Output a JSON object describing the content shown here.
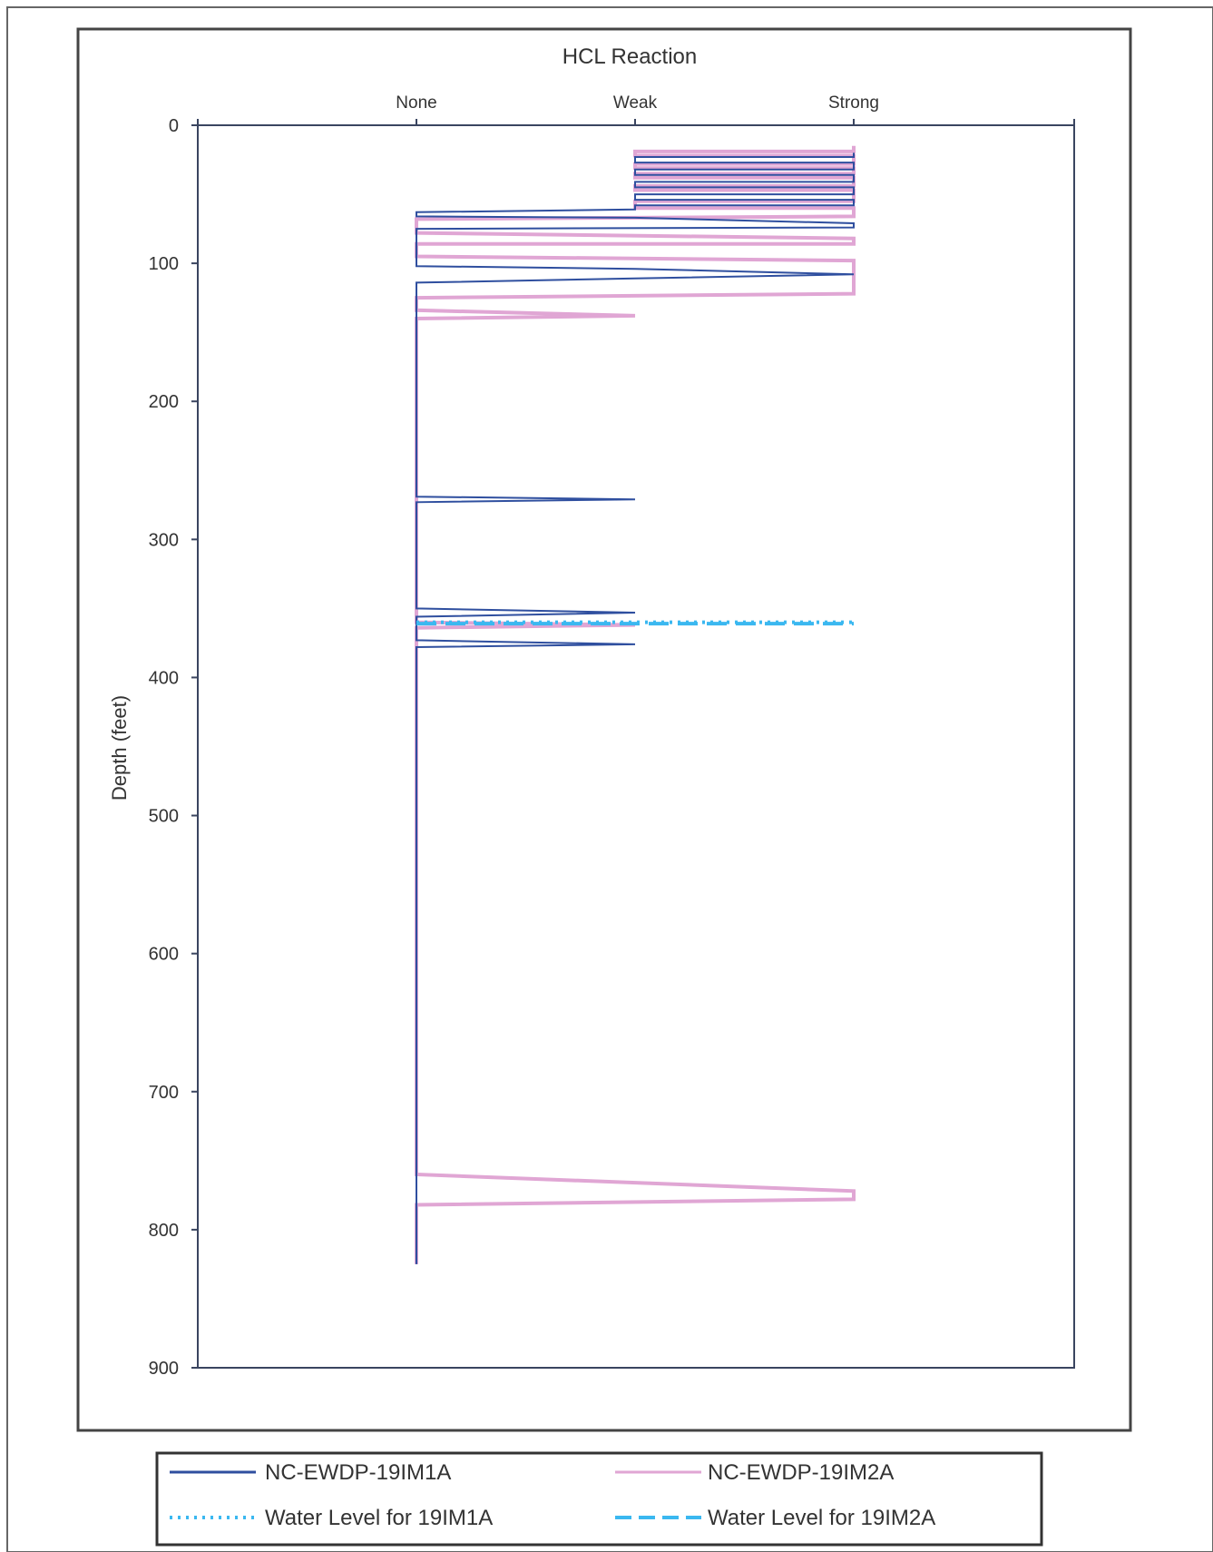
{
  "chart_data": {
    "type": "line",
    "title": "HCL Reaction",
    "xlabel": "",
    "ylabel": "Depth (feet)",
    "x_categories": [
      "None",
      "Weak",
      "Strong"
    ],
    "x_axis_position": "top",
    "y_ticks": [
      "0",
      "100",
      "200",
      "300",
      "400",
      "500",
      "600",
      "700",
      "800",
      "900"
    ],
    "ylim": [
      0,
      900
    ],
    "y_inverted": true,
    "grid": false,
    "legend_position": "bottom",
    "series": [
      {
        "name": "NC-EWDP-19IM1A",
        "color": "#2f4f9f",
        "style": "solid",
        "points": [
          [
            2,
            20
          ],
          [
            2,
            23
          ],
          [
            1,
            23
          ],
          [
            1,
            27
          ],
          [
            2,
            27
          ],
          [
            2,
            32
          ],
          [
            1,
            32
          ],
          [
            1,
            36
          ],
          [
            2,
            36
          ],
          [
            2,
            41
          ],
          [
            1,
            41
          ],
          [
            1,
            45
          ],
          [
            2,
            45
          ],
          [
            2,
            50
          ],
          [
            1,
            50
          ],
          [
            1,
            54
          ],
          [
            2,
            54
          ],
          [
            2,
            58
          ],
          [
            1,
            58
          ],
          [
            1,
            61
          ],
          [
            0,
            63
          ],
          [
            0,
            66
          ],
          [
            1,
            67
          ],
          [
            2,
            71
          ],
          [
            2,
            74
          ],
          [
            0,
            75
          ],
          [
            0,
            102
          ],
          [
            1,
            104
          ],
          [
            2,
            108
          ],
          [
            1,
            111
          ],
          [
            0,
            114
          ],
          [
            0,
            269
          ],
          [
            1,
            271
          ],
          [
            0,
            273
          ],
          [
            0,
            350
          ],
          [
            1,
            353
          ],
          [
            0,
            356
          ],
          [
            0,
            373
          ],
          [
            1,
            376
          ],
          [
            0,
            378
          ],
          [
            0,
            825
          ]
        ]
      },
      {
        "name": "NC-EWDP-19IM2A",
        "color": "#e0a6d4",
        "style": "solid",
        "points": [
          [
            2,
            15
          ],
          [
            2,
            19
          ],
          [
            1,
            19
          ],
          [
            1,
            22
          ],
          [
            2,
            22
          ],
          [
            2,
            28
          ],
          [
            1,
            28
          ],
          [
            1,
            31
          ],
          [
            2,
            31
          ],
          [
            2,
            35
          ],
          [
            1,
            35
          ],
          [
            1,
            38
          ],
          [
            2,
            38
          ],
          [
            2,
            44
          ],
          [
            1,
            44
          ],
          [
            1,
            47
          ],
          [
            2,
            47
          ],
          [
            2,
            55
          ],
          [
            1,
            55
          ],
          [
            1,
            60
          ],
          [
            2,
            60
          ],
          [
            2,
            66
          ],
          [
            0,
            68
          ],
          [
            0,
            78
          ],
          [
            2,
            82
          ],
          [
            2,
            86
          ],
          [
            0,
            86
          ],
          [
            0,
            95
          ],
          [
            2,
            98
          ],
          [
            2,
            122
          ],
          [
            0,
            125
          ],
          [
            0,
            134
          ],
          [
            1,
            138
          ],
          [
            0,
            140
          ],
          [
            0,
            360
          ],
          [
            1,
            362
          ],
          [
            0,
            364
          ],
          [
            0,
            760
          ],
          [
            2,
            772
          ],
          [
            2,
            778
          ],
          [
            0,
            782
          ],
          [
            0,
            825
          ]
        ]
      },
      {
        "name": "Water Level for 19IM1A",
        "color": "#3bb8f0",
        "style": "dotted",
        "points": [
          [
            0,
            360
          ],
          [
            2,
            360
          ]
        ]
      },
      {
        "name": "Water Level for 19IM2A",
        "color": "#3bb8f0",
        "style": "dashed",
        "points": [
          [
            0,
            361
          ],
          [
            2,
            361
          ]
        ]
      }
    ],
    "legend": [
      {
        "label": "NC-EWDP-19IM1A",
        "color": "#2f4f9f",
        "style": "solid"
      },
      {
        "label": "NC-EWDP-19IM2A",
        "color": "#e0a6d4",
        "style": "solid"
      },
      {
        "label": "Water Level for 19IM1A",
        "color": "#3bb8f0",
        "style": "dotted"
      },
      {
        "label": "Water Level for 19IM2A",
        "color": "#3bb8f0",
        "style": "dashed"
      }
    ]
  }
}
